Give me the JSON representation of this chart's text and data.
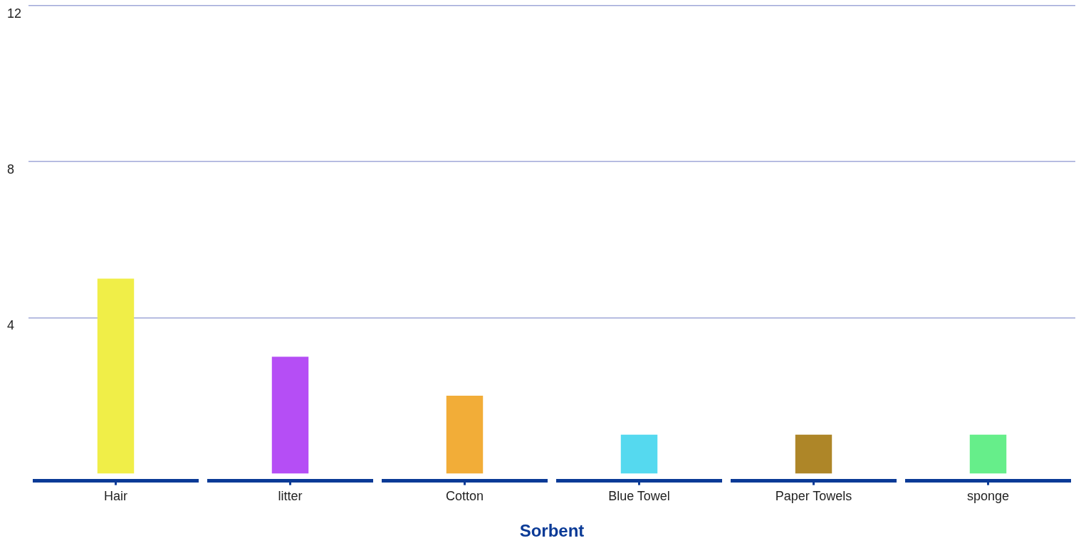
{
  "chart_data": {
    "type": "bar",
    "xlabel": "Sorbent",
    "categories": [
      "Hair",
      "litter",
      "Cotton",
      "Blue Towel",
      "Paper Towels",
      "sponge"
    ],
    "values": [
      5,
      3,
      2,
      1,
      1,
      1
    ],
    "colors": [
      "#f0ee48",
      "#b54ef5",
      "#f2ad38",
      "#55d9ef",
      "#ae8628",
      "#66ee8a"
    ],
    "ylim": [
      0,
      12
    ],
    "yticks": [
      4,
      8,
      12
    ],
    "grid": "y"
  }
}
